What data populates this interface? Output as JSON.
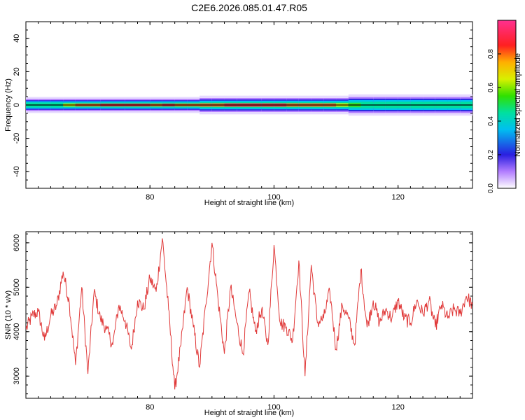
{
  "title": "C2E6.2026.085.01.47.R05",
  "chart_data": [
    {
      "type": "heatmap",
      "xlabel": "Height of straight line (km)",
      "ylabel": "Frequency (Hz)",
      "xlim": [
        60,
        132
      ],
      "ylim": [
        -50,
        50
      ],
      "x_ticks": [
        80,
        100,
        120
      ],
      "y_ticks": [
        -40,
        -20,
        0,
        20,
        40
      ],
      "colorbar": {
        "label": "Normalized spectral amplitude",
        "range": [
          0,
          1
        ],
        "ticks": [
          "0.0",
          "0.2",
          "0.4",
          "0.6",
          "0.8"
        ],
        "tick_values": [
          0,
          0.2,
          0.4,
          0.6,
          0.8
        ]
      },
      "band": {
        "center_hz": 0,
        "half_width_hz": [
          3,
          3,
          3,
          3,
          3,
          3,
          3,
          3,
          3,
          3,
          3,
          3,
          3,
          3,
          3.5,
          3.5,
          3.5,
          3.5,
          3.5,
          3.5,
          3.5,
          3.5,
          3.5,
          3.5,
          3.5,
          3.5,
          4,
          4,
          4,
          4,
          4,
          4,
          4,
          4,
          4,
          4
        ],
        "x": [
          60,
          62,
          64,
          66,
          68,
          70,
          72,
          74,
          76,
          78,
          80,
          82,
          84,
          86,
          88,
          90,
          92,
          94,
          96,
          98,
          100,
          102,
          104,
          106,
          108,
          110,
          112,
          114,
          116,
          118,
          120,
          122,
          124,
          126,
          128,
          130
        ],
        "peak_amplitude": [
          0.45,
          0.5,
          0.55,
          0.7,
          0.85,
          0.9,
          0.95,
          1.0,
          1.0,
          1.0,
          0.9,
          0.95,
          0.9,
          0.85,
          0.8,
          0.85,
          0.95,
          1.0,
          1.0,
          0.95,
          0.95,
          0.9,
          0.85,
          0.85,
          0.8,
          0.7,
          0.6,
          0.5,
          0.5,
          0.45,
          0.45,
          0.45,
          0.45,
          0.45,
          0.45,
          0.45
        ]
      }
    },
    {
      "type": "line",
      "xlabel": "Height of straight line (km)",
      "ylabel": "SNR (10 * v/v)",
      "xlim": [
        60,
        132
      ],
      "ylim": [
        2500,
        6250
      ],
      "x_ticks": [
        80,
        100,
        120
      ],
      "y_ticks": [
        3000,
        4000,
        5000,
        6000
      ],
      "series": [
        {
          "color": "#e03a3a",
          "x": [
            60,
            61,
            62,
            63,
            64,
            65,
            66,
            67,
            68,
            69,
            70,
            71,
            72,
            73,
            74,
            75,
            76,
            77,
            78,
            79,
            80,
            81,
            82,
            83,
            84,
            85,
            86,
            87,
            88,
            89,
            90,
            91,
            92,
            93,
            94,
            95,
            96,
            97,
            98,
            99,
            100,
            101,
            102,
            103,
            104,
            105,
            106,
            107,
            108,
            109,
            110,
            111,
            112,
            113,
            114,
            115,
            116,
            117,
            118,
            119,
            120,
            121,
            122,
            123,
            124,
            125,
            126,
            127,
            128,
            129,
            130,
            131,
            132
          ],
          "values": [
            4050,
            4350,
            4450,
            3800,
            4350,
            4600,
            5350,
            4650,
            3250,
            5000,
            3050,
            4900,
            4300,
            4050,
            3700,
            4600,
            4250,
            3600,
            4700,
            4500,
            5200,
            4900,
            6100,
            4500,
            2700,
            3700,
            5000,
            4100,
            3200,
            4600,
            6000,
            4700,
            3500,
            5000,
            4200,
            3500,
            4900,
            4000,
            4500,
            3700,
            5950,
            4200,
            4100,
            3800,
            5600,
            3000,
            5500,
            4200,
            4300,
            4900,
            3600,
            4600,
            4300,
            3700,
            5400,
            4100,
            4700,
            4200,
            4500,
            4300,
            4700,
            4300,
            4200,
            4700,
            4400,
            4700,
            4100,
            4600,
            4300,
            4500,
            4400,
            4800,
            4600
          ]
        }
      ]
    }
  ]
}
